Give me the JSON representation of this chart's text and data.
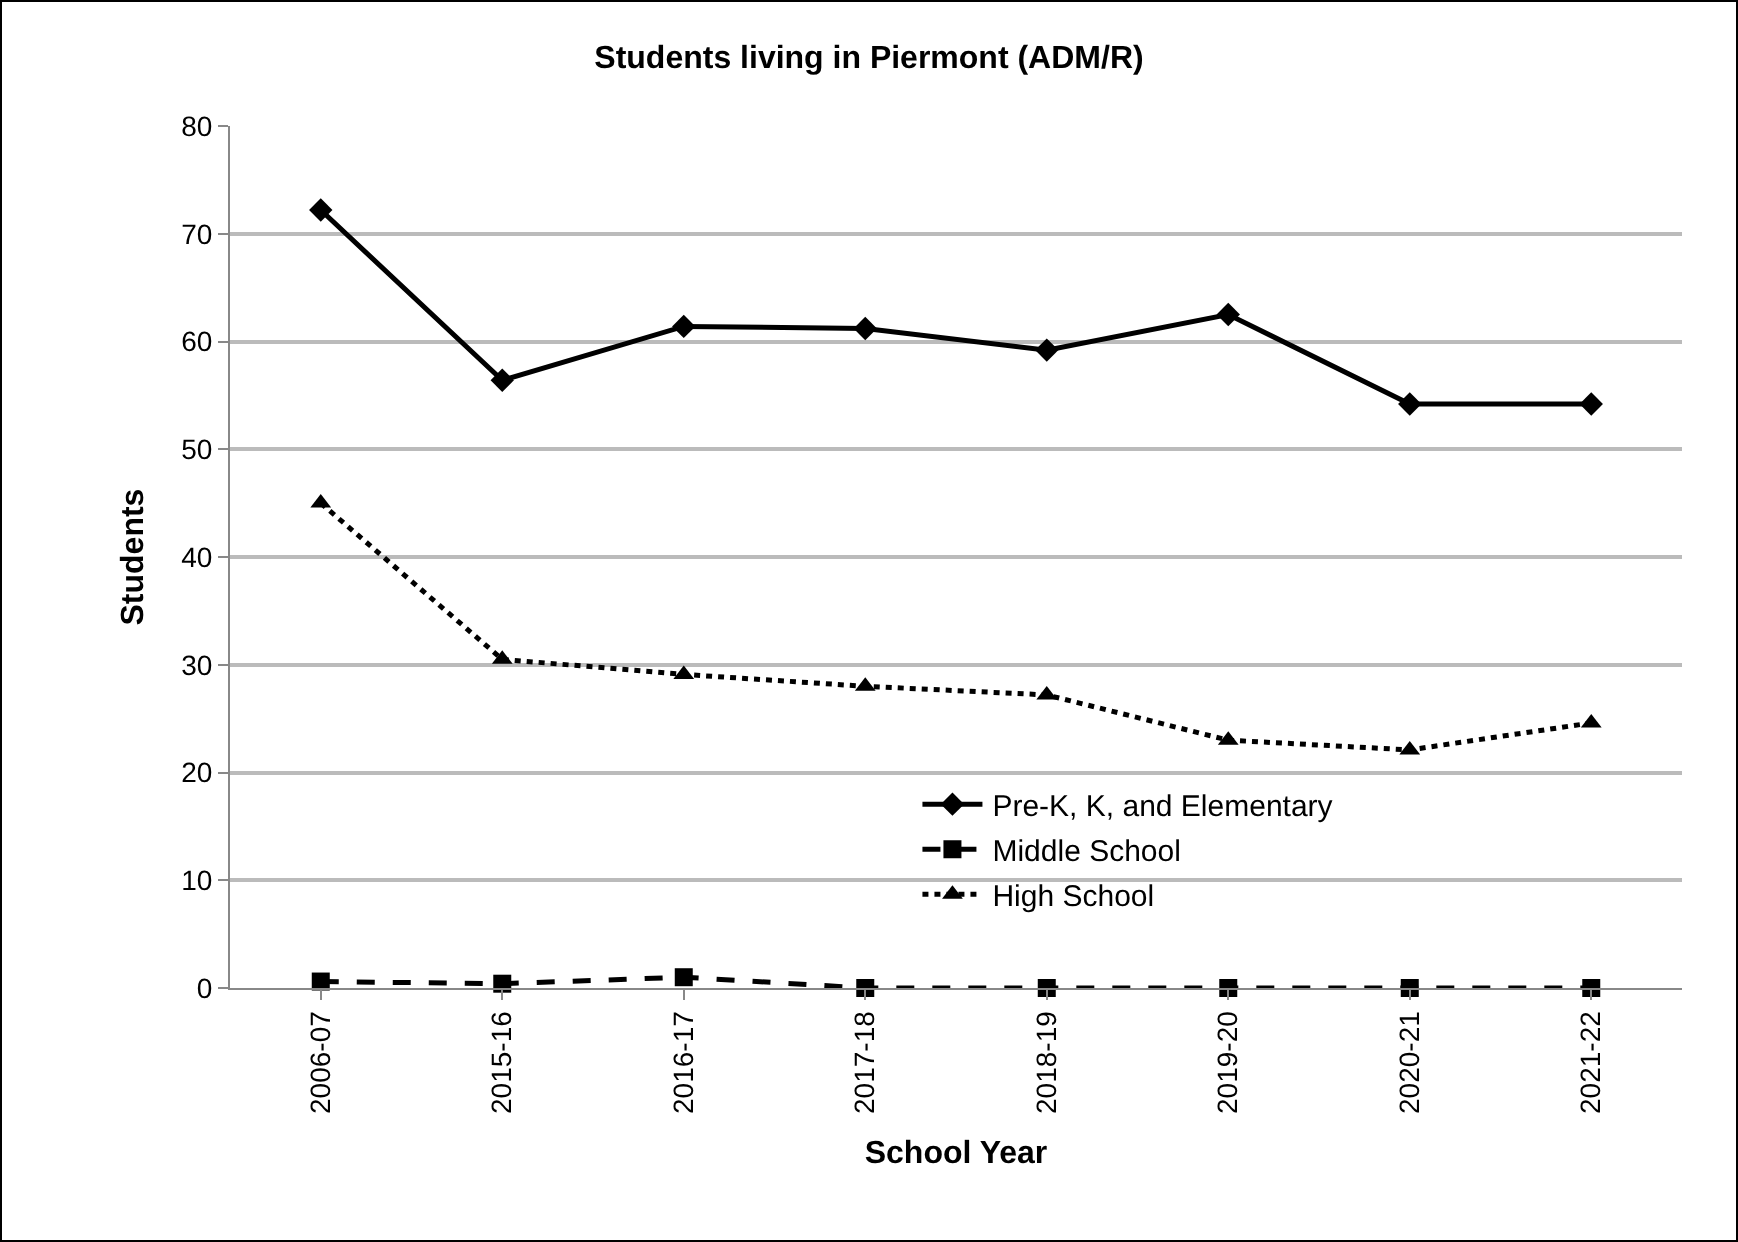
{
  "chart_data": {
    "type": "line",
    "title": "Students living in Piermont (ADM/R)",
    "xlabel": "School Year",
    "ylabel": "Students",
    "categories": [
      "2006-07",
      "2015-16",
      "2016-17",
      "2017-18",
      "2018-19",
      "2019-20",
      "2020-21",
      "2021-22"
    ],
    "series": [
      {
        "name": "Pre-K, K, and Elementary",
        "color": "#000000",
        "marker": "diamond",
        "line_style": "solid",
        "values": [
          72.2,
          56.4,
          61.4,
          61.2,
          59.2,
          62.5,
          54.2,
          54.2
        ]
      },
      {
        "name": "Middle School",
        "color": "#000000",
        "marker": "square",
        "line_style": "dashed",
        "values": [
          0.6,
          0.4,
          1,
          0,
          0,
          0,
          0,
          0
        ]
      },
      {
        "name": "High School",
        "color": "#000000",
        "marker": "triangle",
        "line_style": "dotted",
        "values": [
          45,
          30.5,
          29.1,
          28,
          27.2,
          23,
          22.1,
          24.6
        ]
      }
    ],
    "ylim": [
      0,
      80
    ],
    "yticks": [
      0,
      10,
      20,
      30,
      40,
      50,
      60,
      70,
      80
    ],
    "grid": "y",
    "legend": "bottom right"
  }
}
